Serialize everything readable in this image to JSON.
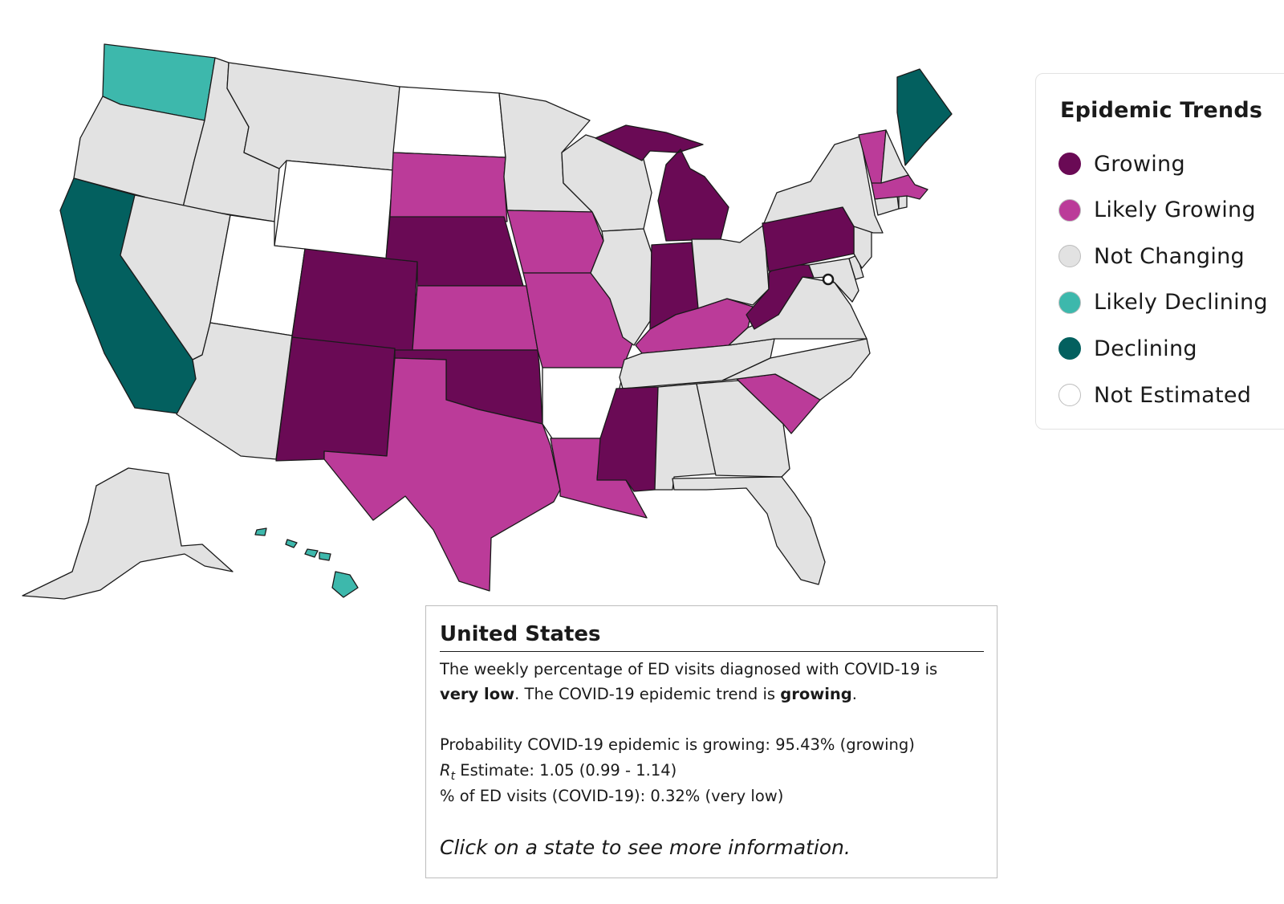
{
  "colors": {
    "growing": "#6a0a55",
    "likely_growing": "#bb3b99",
    "not_changing": "#e2e2e2",
    "likely_declining": "#3db8ac",
    "declining": "#03605f",
    "not_estimated": "#ffffff"
  },
  "legend": {
    "title": "Epidemic Trends",
    "items": [
      {
        "label": "Growing",
        "category": "growing"
      },
      {
        "label": "Likely Growing",
        "category": "likely_growing"
      },
      {
        "label": "Not Changing",
        "category": "not_changing"
      },
      {
        "label": "Likely Declining",
        "category": "likely_declining"
      },
      {
        "label": "Declining",
        "category": "declining"
      },
      {
        "label": "Not Estimated",
        "category": "not_estimated"
      }
    ]
  },
  "states": [
    {
      "abbr": "WA",
      "category": "likely_declining"
    },
    {
      "abbr": "OR",
      "category": "not_changing"
    },
    {
      "abbr": "CA",
      "category": "declining"
    },
    {
      "abbr": "ID",
      "category": "not_changing"
    },
    {
      "abbr": "NV",
      "category": "not_changing"
    },
    {
      "abbr": "MT",
      "category": "not_changing"
    },
    {
      "abbr": "WY",
      "category": "not_estimated"
    },
    {
      "abbr": "UT",
      "category": "not_estimated"
    },
    {
      "abbr": "AZ",
      "category": "not_changing"
    },
    {
      "abbr": "CO",
      "category": "growing"
    },
    {
      "abbr": "NM",
      "category": "growing"
    },
    {
      "abbr": "ND",
      "category": "not_estimated"
    },
    {
      "abbr": "SD",
      "category": "likely_growing"
    },
    {
      "abbr": "NE",
      "category": "growing"
    },
    {
      "abbr": "KS",
      "category": "likely_growing"
    },
    {
      "abbr": "OK",
      "category": "growing"
    },
    {
      "abbr": "TX",
      "category": "likely_growing"
    },
    {
      "abbr": "MN",
      "category": "not_changing"
    },
    {
      "abbr": "IA",
      "category": "likely_growing"
    },
    {
      "abbr": "MO",
      "category": "likely_growing"
    },
    {
      "abbr": "AR",
      "category": "not_estimated"
    },
    {
      "abbr": "LA",
      "category": "likely_growing"
    },
    {
      "abbr": "WI",
      "category": "not_changing"
    },
    {
      "abbr": "IL",
      "category": "not_changing"
    },
    {
      "abbr": "MI",
      "category": "growing"
    },
    {
      "abbr": "IN",
      "category": "growing"
    },
    {
      "abbr": "OH",
      "category": "not_changing"
    },
    {
      "abbr": "KY",
      "category": "likely_growing"
    },
    {
      "abbr": "TN",
      "category": "not_changing"
    },
    {
      "abbr": "MS",
      "category": "growing"
    },
    {
      "abbr": "AL",
      "category": "not_changing"
    },
    {
      "abbr": "GA",
      "category": "not_changing"
    },
    {
      "abbr": "FL",
      "category": "not_changing"
    },
    {
      "abbr": "SC",
      "category": "likely_growing"
    },
    {
      "abbr": "NC",
      "category": "not_changing"
    },
    {
      "abbr": "VA",
      "category": "not_changing"
    },
    {
      "abbr": "WV",
      "category": "growing"
    },
    {
      "abbr": "MD",
      "category": "not_changing"
    },
    {
      "abbr": "DE",
      "category": "not_changing"
    },
    {
      "abbr": "NJ",
      "category": "not_changing"
    },
    {
      "abbr": "PA",
      "category": "growing"
    },
    {
      "abbr": "NY",
      "category": "not_changing"
    },
    {
      "abbr": "CT",
      "category": "not_changing"
    },
    {
      "abbr": "RI",
      "category": "not_changing"
    },
    {
      "abbr": "MA",
      "category": "likely_growing"
    },
    {
      "abbr": "VT",
      "category": "likely_growing"
    },
    {
      "abbr": "NH",
      "category": "not_changing"
    },
    {
      "abbr": "ME",
      "category": "declining"
    },
    {
      "abbr": "AK",
      "category": "not_changing"
    },
    {
      "abbr": "HI",
      "category": "likely_declining"
    },
    {
      "abbr": "DC",
      "category": "not_estimated"
    }
  ],
  "info": {
    "title": "United States",
    "summary_prefix": "The weekly percentage of ED visits diagnosed with COVID-19 is",
    "level": "very low",
    "summary_middle": ". The COVID-19 epidemic trend is",
    "trend": "growing",
    "summary_suffix": ".",
    "probability_line": "Probability COVID-19 epidemic is growing: 95.43% (growing)",
    "rt_symbol": "R",
    "rt_subscript": "t",
    "rt_line": "Estimate: 1.05 (0.99 - 1.14)",
    "ed_line": "% of ED visits (COVID-19): 0.32% (very low)",
    "call_to_action": "Click on a state to see more information."
  }
}
